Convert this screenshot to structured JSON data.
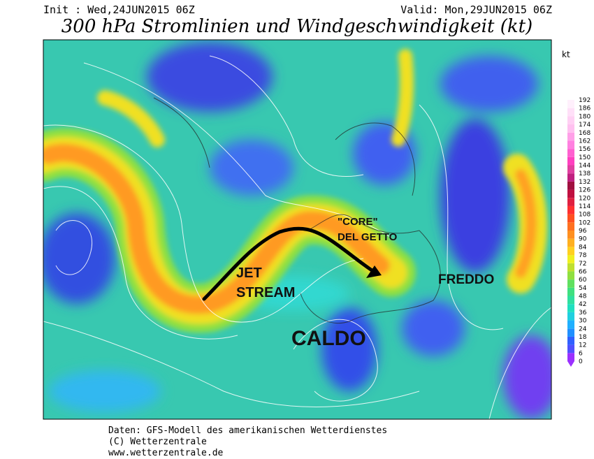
{
  "header": {
    "init": "Init : Wed,24JUN2015 06Z",
    "valid": "Valid: Mon,29JUN2015 06Z",
    "title": "300 hPa Stromlinien und Windgeschwindigkeit (kt)"
  },
  "colorbar": {
    "unit": "kt",
    "levels": [
      0,
      6,
      12,
      18,
      24,
      30,
      36,
      42,
      48,
      54,
      60,
      66,
      72,
      78,
      84,
      90,
      96,
      102,
      108,
      114,
      120,
      126,
      132,
      138,
      144,
      150,
      156,
      162,
      168,
      174,
      180,
      186,
      192
    ],
    "colors": [
      "#9b30ff",
      "#5050ff",
      "#3060ff",
      "#2090ff",
      "#20b0ff",
      "#20d0e0",
      "#20e0c0",
      "#30e0a0",
      "#40e080",
      "#60e060",
      "#90e040",
      "#c0e030",
      "#f0f020",
      "#ffd020",
      "#ffb020",
      "#ff9020",
      "#ff7020",
      "#ff5020",
      "#ff3030",
      "#e02040",
      "#c01040",
      "#a01040",
      "#c02080",
      "#e040a0",
      "#ff40c0",
      "#ff60d0",
      "#ff80e0",
      "#ffa0e8",
      "#ffc0f0",
      "#ffd0f4",
      "#ffe0f8",
      "#fff0fc"
    ]
  },
  "annotations": {
    "core": [
      "\"CORE\"",
      "DEL GETTO"
    ],
    "jet": [
      "JET",
      "STREAM"
    ],
    "warm": "CALDO",
    "cold": "FREDDO"
  },
  "footer": [
    "Daten: GFS-Modell des amerikanischen Wetterdienstes",
    "(C) Wetterzentrale",
    "www.wetterzentrale.de"
  ]
}
